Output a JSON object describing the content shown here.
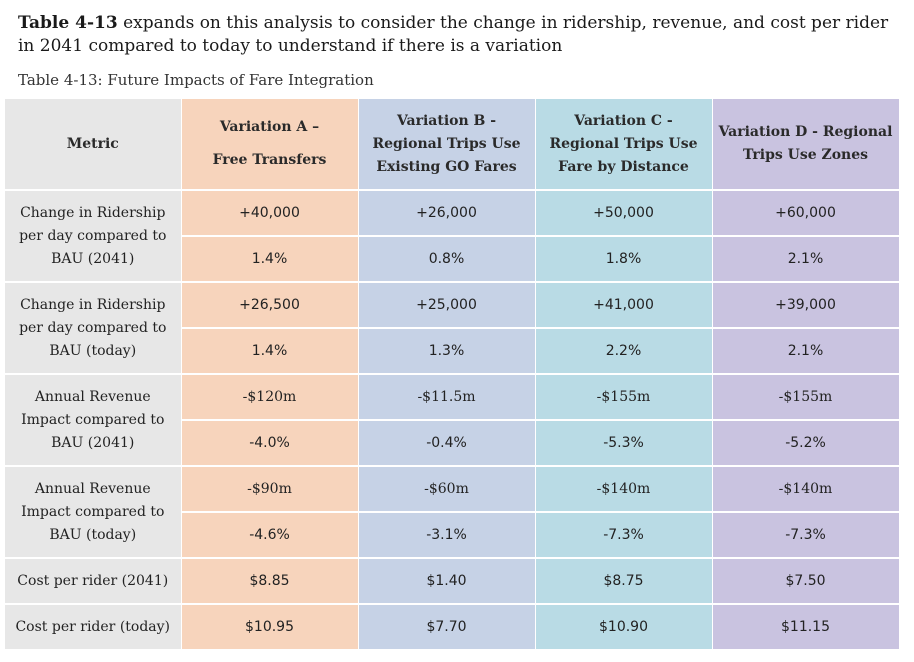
{
  "intro": {
    "bold_lead": "Table 4-13",
    "text": " expands on this analysis to consider the change in ridership, revenue, and cost per rider in 2041 compared to today to understand if there is a variation"
  },
  "caption": "Table 4-13: Future Impacts of Fare Integration",
  "table": {
    "headers": {
      "metric": "Metric",
      "a_line1": "Variation A –",
      "a_line2": "Free Transfers",
      "b_line1": "Variation B -",
      "b_line2": "Regional Trips Use",
      "b_line3": "Existing GO Fares",
      "c_line1": "Variation C -",
      "c_line2": "Regional Trips Use",
      "c_line3": "Fare by Distance",
      "d_line1": "Variation D - Regional",
      "d_line2": "Trips Use Zones"
    },
    "metrics": {
      "ridership_2041": "Change in Ridership per day compared to BAU (2041)",
      "ridership_today": "Change in Ridership per day compared to BAU (today)",
      "revenue_2041": "Annual Revenue Impact compared to BAU (2041)",
      "revenue_today": "Annual Revenue Impact compared to BAU (today)",
      "cost_2041": "Cost per rider (2041)",
      "cost_today": "Cost per rider (today)"
    },
    "rows": [
      {
        "a": "+40,000",
        "b": "+26,000",
        "c": "+50,000",
        "d": "+60,000"
      },
      {
        "a": "1.4%",
        "b": "0.8%",
        "c": "1.8%",
        "d": "2.1%"
      },
      {
        "a": "+26,500",
        "b": "+25,000",
        "c": "+41,000",
        "d": "+39,000"
      },
      {
        "a": "1.4%",
        "b": "1.3%",
        "c": "2.2%",
        "d": "2.1%"
      },
      {
        "a": "-$120m",
        "b": "-$11.5m",
        "c": "-$155m",
        "d": "-$155m"
      },
      {
        "a": "-4.0%",
        "b": "-0.4%",
        "c": "-5.3%",
        "d": "-5.2%"
      },
      {
        "a": "-$90m",
        "b": "-$60m",
        "c": "-$140m",
        "d": "-$140m"
      },
      {
        "a": "-4.6%",
        "b": "-3.1%",
        "c": "-7.3%",
        "d": "-7.3%"
      },
      {
        "a": "$8.85",
        "b": "$1.40",
        "c": "$8.75",
        "d": "$7.50"
      },
      {
        "a": "$10.95",
        "b": "$7.70",
        "c": "$10.90",
        "d": "$11.15"
      }
    ]
  },
  "colors": {
    "metric_bg": "#e7e7e7",
    "variation_a": "#f7d4bc",
    "variation_b": "#c6d2e6",
    "variation_c": "#b9dbe5",
    "variation_d": "#c9c3e0"
  }
}
